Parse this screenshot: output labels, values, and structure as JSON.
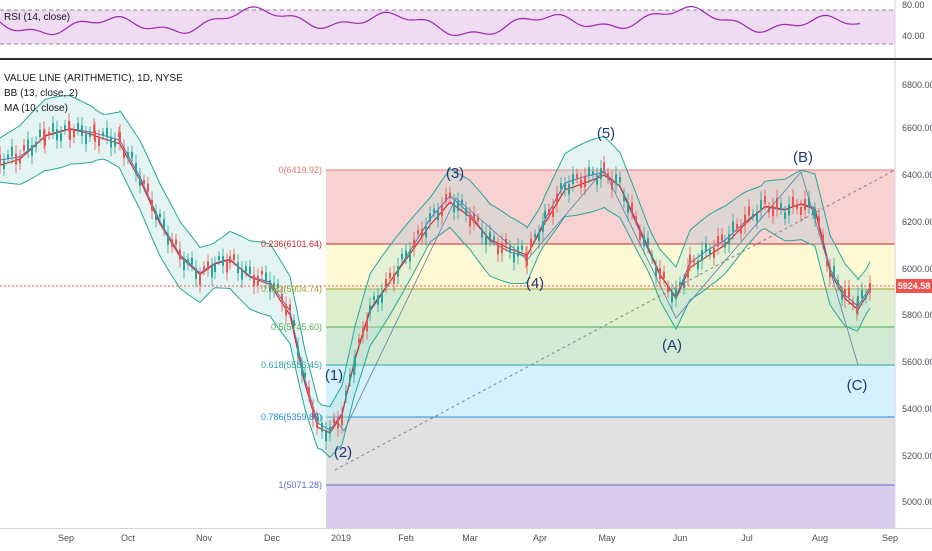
{
  "rsi": {
    "legend": "RSI (14, close)",
    "levels": [
      "80.00",
      "40.00"
    ],
    "color": "#9c27b0"
  },
  "chart": {
    "legend": {
      "title": "VALUE LINE (ARITHMETIC), 1D, NYSE",
      "bb": "BB (13, close, 2)",
      "ma": "MA (10, close)"
    },
    "price_axis": [
      "6800.00",
      "6600.00",
      "6400.00",
      "6200.00",
      "6000.00",
      "5800.00",
      "5600.00",
      "5400.00",
      "5200.00",
      "5000.00"
    ],
    "last_price": "5924.58",
    "fib": {
      "levels": [
        {
          "label": "0(6419.92)",
          "color": "#e57373"
        },
        {
          "label": "0.236(6101.64)",
          "color": "#c62828"
        },
        {
          "label": "0.382(5904.74)",
          "color": "#9e9d24"
        },
        {
          "label": "0.5(5745.60)",
          "color": "#4caf50"
        },
        {
          "label": "0.618(5586.45)",
          "color": "#26a69a"
        },
        {
          "label": "0.786(5359.89)",
          "color": "#1e88e5"
        },
        {
          "label": "1(5071.28)",
          "color": "#5c6bc0"
        }
      ]
    },
    "waves": [
      "(1)",
      "(2)",
      "(3)",
      "(4)",
      "(5)",
      "(A)",
      "(B)",
      "(C)"
    ],
    "colors": {
      "bb": "#26a69a",
      "ma": "#d32f2f",
      "wave_label": "#1a3b7a",
      "price_line": "#ef5350"
    }
  },
  "time_axis": [
    "Sep",
    "Oct",
    "Nov",
    "Dec",
    "2019",
    "Feb",
    "Mar",
    "Apr",
    "May",
    "Jun",
    "Jul",
    "Aug",
    "Sep"
  ]
}
